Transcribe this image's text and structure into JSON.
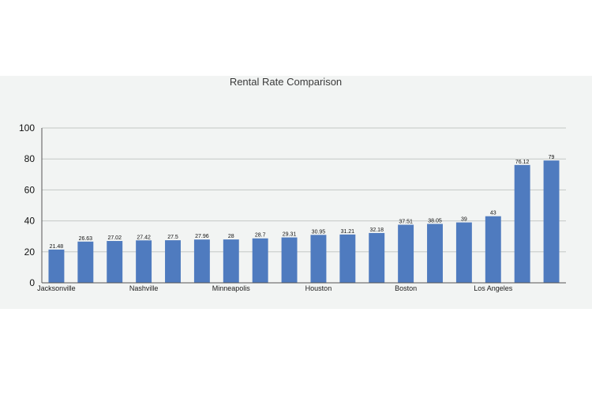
{
  "chart_data": {
    "type": "bar",
    "title": "Rental Rate Comparison",
    "xlabel": "",
    "ylabel": "",
    "ylim": [
      0,
      100
    ],
    "yticks": [
      0,
      20,
      40,
      60,
      80,
      100
    ],
    "grid": true,
    "legend": "none",
    "bar_color": "#4f7bbf",
    "categories": [
      "Jacksonville",
      "",
      "",
      "Nashville",
      "",
      "",
      "Minneapolis",
      "",
      "",
      "Houston",
      "",
      "",
      "Boston",
      "",
      "",
      "Los Angeles",
      "",
      ""
    ],
    "values": [
      21.48,
      26.63,
      27.02,
      27.42,
      27.5,
      27.96,
      28,
      28.7,
      29.31,
      30.95,
      31.21,
      32.18,
      37.51,
      38.05,
      39,
      43,
      76.12,
      79
    ],
    "data_labels": [
      "21.48",
      "26.63",
      "27.02",
      "27.42",
      "27.5",
      "27.96",
      "28",
      "28.7",
      "29.31",
      "30.95",
      "31.21",
      "32.18",
      "37.51",
      "38.05",
      "39",
      "43",
      "76.12",
      "79"
    ]
  }
}
